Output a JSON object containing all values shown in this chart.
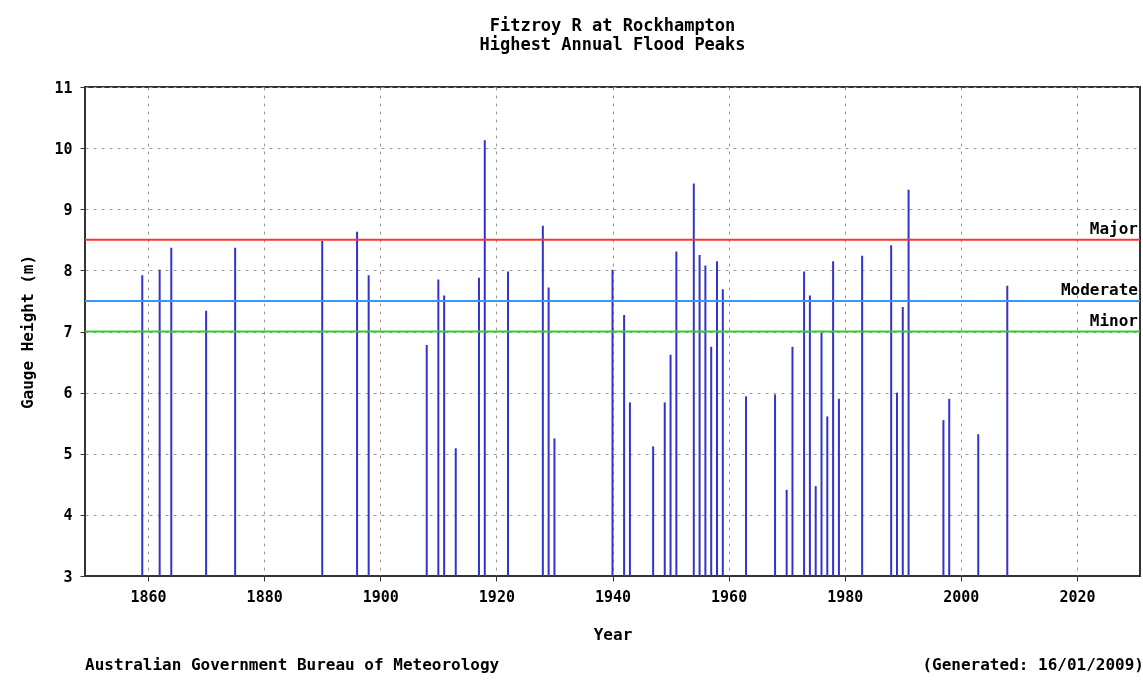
{
  "chart_data": {
    "type": "bar",
    "title": "Fitzroy R at Rockhampton",
    "subtitle": "Highest Annual Flood Peaks",
    "xlabel": "Year",
    "ylabel": "Gauge Height (m)",
    "annotations": [
      "Australian Government Bureau of Meteorology",
      "(Generated: 16/01/2009)"
    ],
    "x": [
      1859,
      1862,
      1864,
      1870,
      1875,
      1890,
      1896,
      1898,
      1908,
      1910,
      1911,
      1913,
      1917,
      1918,
      1922,
      1928,
      1929,
      1930,
      1940,
      1942,
      1943,
      1947,
      1949,
      1950,
      1951,
      1954,
      1955,
      1956,
      1957,
      1958,
      1959,
      1963,
      1968,
      1970,
      1971,
      1973,
      1974,
      1975,
      1976,
      1977,
      1978,
      1979,
      1983,
      1988,
      1989,
      1990,
      1991,
      1997,
      1998,
      2003,
      2008
    ],
    "values": [
      7.92,
      8.01,
      8.37,
      7.34,
      8.37,
      8.48,
      8.63,
      7.92,
      6.78,
      7.85,
      7.59,
      5.09,
      7.88,
      10.13,
      7.98,
      8.73,
      7.72,
      5.25,
      8.01,
      7.27,
      5.84,
      5.12,
      5.84,
      6.62,
      8.31,
      9.42,
      8.25,
      8.08,
      6.75,
      8.15,
      7.69,
      5.94,
      5.97,
      4.41,
      6.75,
      7.98,
      7.59,
      4.47,
      6.98,
      5.61,
      8.15,
      5.9,
      8.24,
      8.41,
      6.0,
      7.4,
      9.32,
      5.55,
      5.9,
      5.32,
      7.75
    ],
    "color": "#3333cc",
    "xlim": [
      1850,
      2030
    ],
    "xticks": [
      1860,
      1880,
      1900,
      1920,
      1940,
      1960,
      1980,
      2000,
      2020
    ],
    "ylim": [
      3,
      11
    ],
    "yticks": [
      3,
      4,
      5,
      6,
      7,
      8,
      9,
      10,
      11
    ],
    "ref_lines": [
      {
        "axis": "y",
        "value": 8.5,
        "label": "Major",
        "color": "#ff3333"
      },
      {
        "axis": "y",
        "value": 7.5,
        "label": "Moderate",
        "color": "#3399ff"
      },
      {
        "axis": "y",
        "value": 7.0,
        "label": "Minor",
        "color": "#33cc33"
      }
    ],
    "grid": true
  }
}
